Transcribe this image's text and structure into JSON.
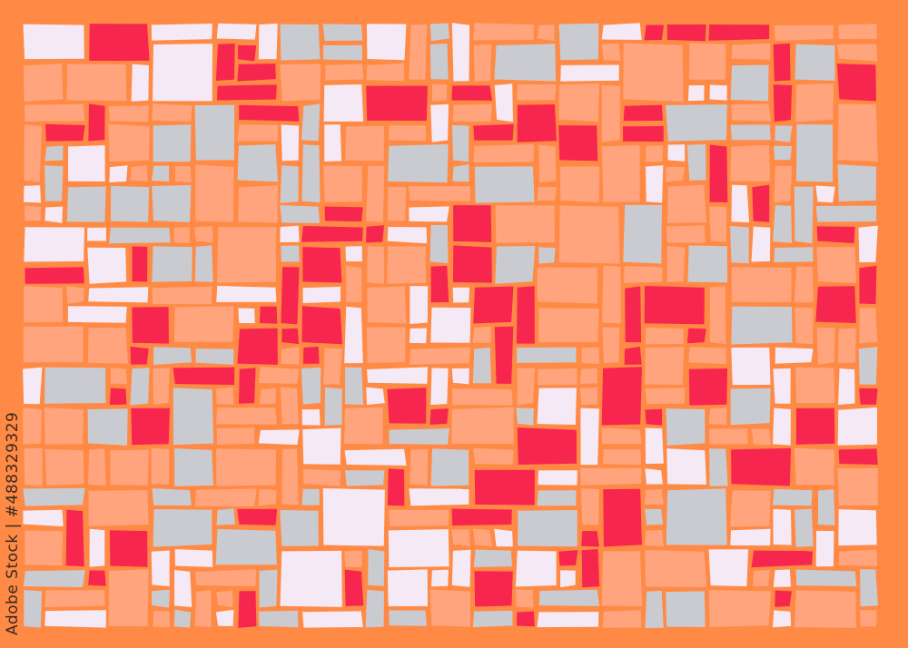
{
  "image": {
    "description_free": true,
    "colors": {
      "background": "#FF8A45",
      "tiles": [
        "#F7264E",
        "#C9CBD0",
        "#F5E9F5",
        "#FFA47C",
        "#FFA47C"
      ]
    }
  },
  "watermark": {
    "credit": "Adobe Stock | #488329329"
  }
}
